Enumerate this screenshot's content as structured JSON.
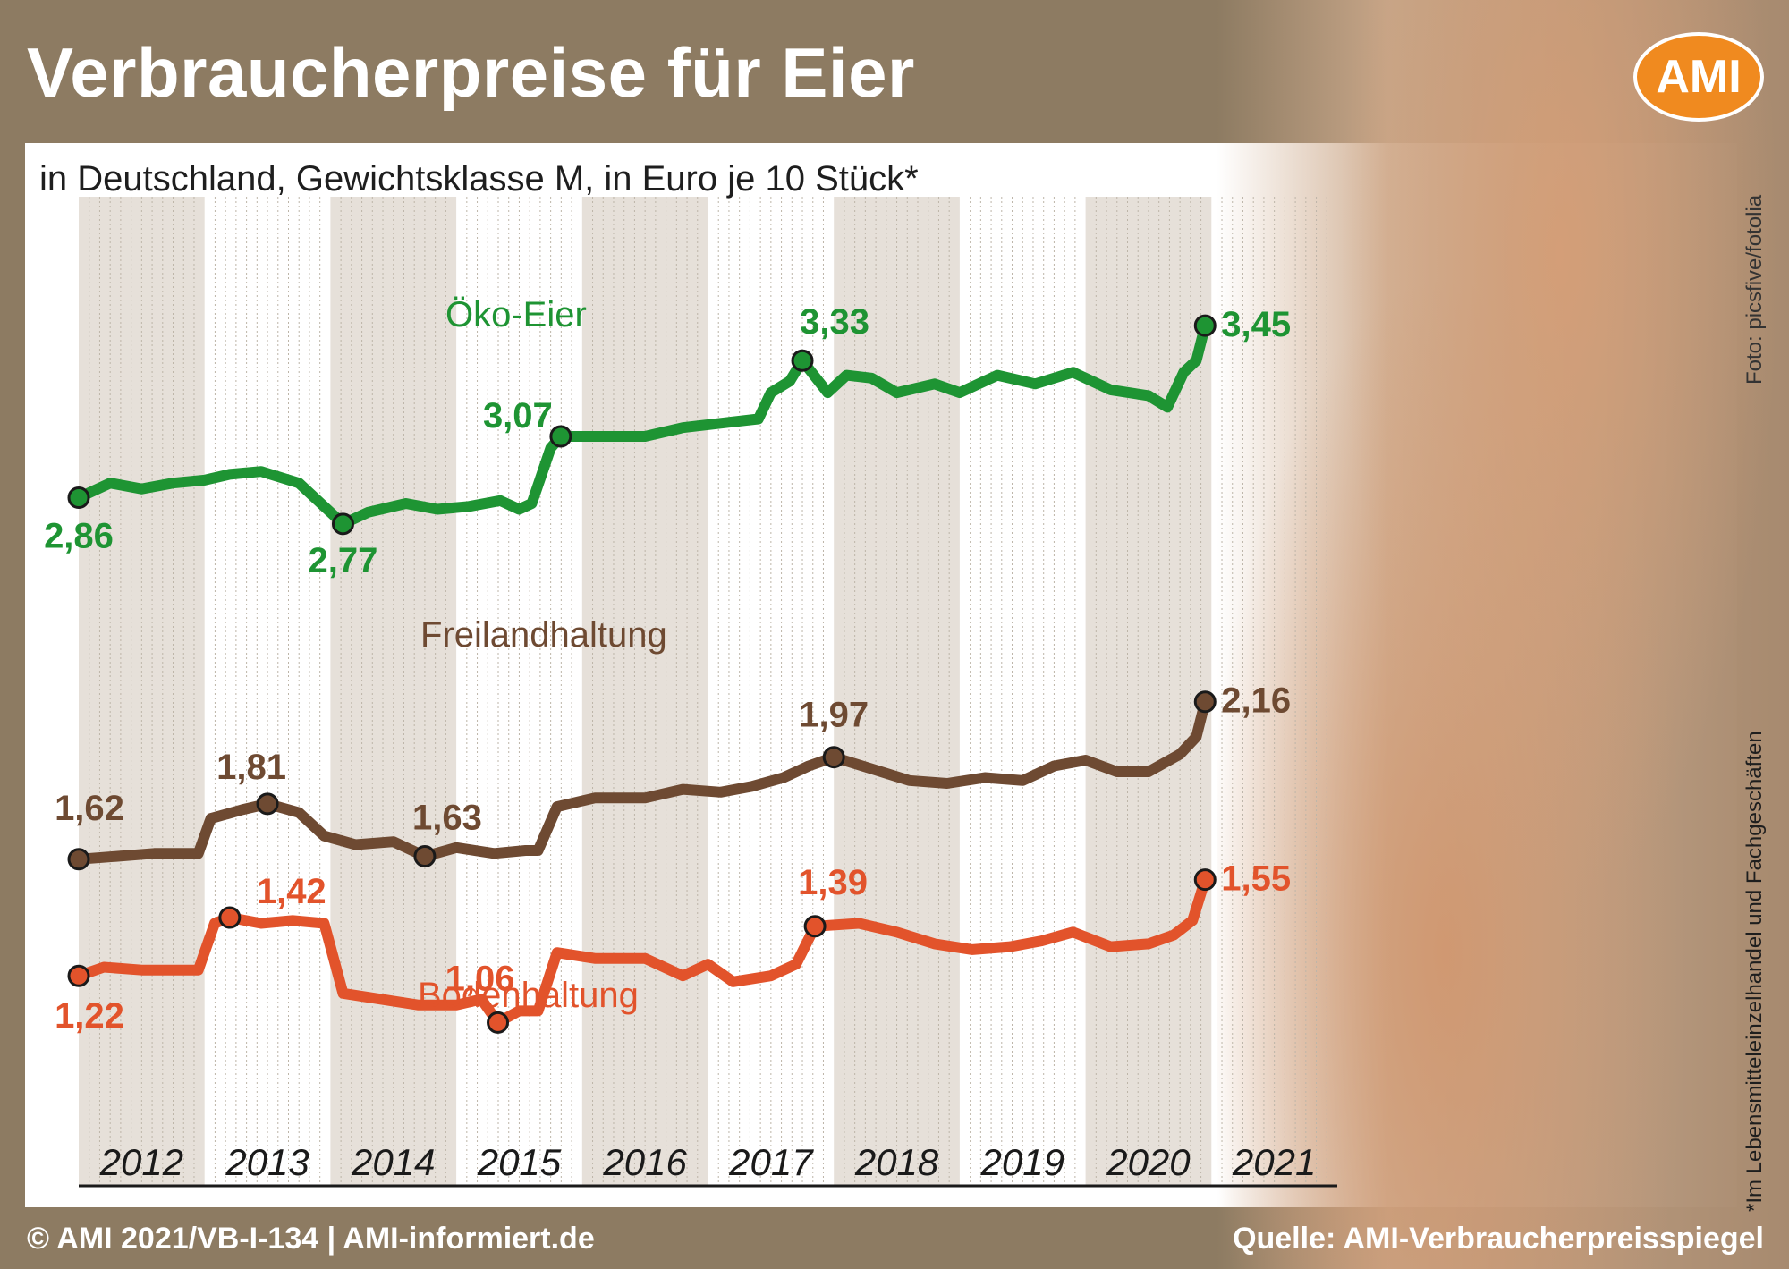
{
  "header": {
    "title": "Verbraucherpreise für Eier",
    "logo": "AMI"
  },
  "subtitle": "in Deutschland, Gewichtsklasse M, in Euro je 10 Stück*",
  "photo_credit": "Foto:  picsfive/fotolia",
  "footnote": "*Im Lebensmitteleinzelhandel und Fachgeschäften",
  "footer": {
    "left": "© AMI 2021/VB-I-134 | AMI-informiert.de",
    "right": "Quelle: AMI-Verbraucherpreisspiegel"
  },
  "colors": {
    "oeko": "#1e9433",
    "freiland": "#6e4a32",
    "boden": "#e2532b",
    "accent": "#f08a1f"
  },
  "chart_data": {
    "type": "line",
    "title": "Verbraucherpreise für Eier",
    "subtitle": "in Deutschland, Gewichtsklasse M, in Euro je 10 Stück*",
    "xlabel": "",
    "ylabel": "",
    "x_ticks": [
      "2012",
      "2013",
      "2014",
      "2015",
      "2016",
      "2017",
      "2018",
      "2019",
      "2020",
      "2021"
    ],
    "xlim": [
      2012.0,
      2022.0
    ],
    "ylim": [
      0.5,
      3.8
    ],
    "grid": "vertical",
    "series": [
      {
        "name": "Öko-Eier",
        "color": "#1e9433",
        "points": [
          [
            2012.0,
            2.86
          ],
          [
            2012.25,
            2.91
          ],
          [
            2012.5,
            2.89
          ],
          [
            2012.75,
            2.91
          ],
          [
            2013.0,
            2.92
          ],
          [
            2013.2,
            2.94
          ],
          [
            2013.45,
            2.95
          ],
          [
            2013.6,
            2.93
          ],
          [
            2013.75,
            2.91
          ],
          [
            2013.95,
            2.83
          ],
          [
            2014.1,
            2.77
          ],
          [
            2014.3,
            2.81
          ],
          [
            2014.6,
            2.84
          ],
          [
            2014.85,
            2.82
          ],
          [
            2015.1,
            2.83
          ],
          [
            2015.35,
            2.85
          ],
          [
            2015.5,
            2.82
          ],
          [
            2015.6,
            2.84
          ],
          [
            2015.75,
            3.03
          ],
          [
            2015.83,
            3.07
          ],
          [
            2016.2,
            3.07
          ],
          [
            2016.5,
            3.07
          ],
          [
            2016.8,
            3.1
          ],
          [
            2017.2,
            3.12
          ],
          [
            2017.4,
            3.13
          ],
          [
            2017.5,
            3.22
          ],
          [
            2017.65,
            3.26
          ],
          [
            2017.75,
            3.33
          ],
          [
            2017.95,
            3.22
          ],
          [
            2018.1,
            3.28
          ],
          [
            2018.3,
            3.27
          ],
          [
            2018.5,
            3.22
          ],
          [
            2018.8,
            3.25
          ],
          [
            2019.0,
            3.22
          ],
          [
            2019.3,
            3.28
          ],
          [
            2019.6,
            3.25
          ],
          [
            2019.9,
            3.29
          ],
          [
            2020.2,
            3.23
          ],
          [
            2020.5,
            3.21
          ],
          [
            2020.65,
            3.17
          ],
          [
            2020.78,
            3.29
          ],
          [
            2020.88,
            3.33
          ],
          [
            2020.95,
            3.45
          ]
        ],
        "labeled_points": [
          {
            "x": 2012.0,
            "y": 2.86,
            "label": "2,86"
          },
          {
            "x": 2014.1,
            "y": 2.77,
            "label": "2,77"
          },
          {
            "x": 2015.83,
            "y": 3.07,
            "label": "3,07"
          },
          {
            "x": 2017.75,
            "y": 3.33,
            "label": "3,33"
          },
          {
            "x": 2020.95,
            "y": 3.45,
            "label": "3,45"
          }
        ]
      },
      {
        "name": "Freilandhaltung",
        "color": "#6e4a32",
        "points": [
          [
            2012.0,
            1.62
          ],
          [
            2012.3,
            1.63
          ],
          [
            2012.6,
            1.64
          ],
          [
            2012.95,
            1.64
          ],
          [
            2013.05,
            1.76
          ],
          [
            2013.3,
            1.79
          ],
          [
            2013.5,
            1.81
          ],
          [
            2013.75,
            1.78
          ],
          [
            2013.95,
            1.7
          ],
          [
            2014.2,
            1.67
          ],
          [
            2014.5,
            1.68
          ],
          [
            2014.75,
            1.63
          ],
          [
            2015.0,
            1.66
          ],
          [
            2015.3,
            1.64
          ],
          [
            2015.55,
            1.65
          ],
          [
            2015.65,
            1.65
          ],
          [
            2015.8,
            1.8
          ],
          [
            2016.1,
            1.83
          ],
          [
            2016.5,
            1.83
          ],
          [
            2016.8,
            1.86
          ],
          [
            2017.1,
            1.85
          ],
          [
            2017.35,
            1.87
          ],
          [
            2017.6,
            1.9
          ],
          [
            2017.8,
            1.94
          ],
          [
            2018.0,
            1.97
          ],
          [
            2018.3,
            1.93
          ],
          [
            2018.6,
            1.89
          ],
          [
            2018.9,
            1.88
          ],
          [
            2019.2,
            1.9
          ],
          [
            2019.5,
            1.89
          ],
          [
            2019.75,
            1.94
          ],
          [
            2020.0,
            1.96
          ],
          [
            2020.25,
            1.92
          ],
          [
            2020.5,
            1.92
          ],
          [
            2020.75,
            1.98
          ],
          [
            2020.88,
            2.04
          ],
          [
            2020.95,
            2.16
          ]
        ],
        "labeled_points": [
          {
            "x": 2012.0,
            "y": 1.62,
            "label": "1,62"
          },
          {
            "x": 2013.5,
            "y": 1.81,
            "label": "1,81"
          },
          {
            "x": 2014.75,
            "y": 1.63,
            "label": "1,63"
          },
          {
            "x": 2018.0,
            "y": 1.97,
            "label": "1,97"
          },
          {
            "x": 2020.95,
            "y": 2.16,
            "label": "2,16"
          }
        ]
      },
      {
        "name": "Bodenhaltung",
        "color": "#e2532b",
        "points": [
          [
            2012.0,
            1.22
          ],
          [
            2012.2,
            1.25
          ],
          [
            2012.5,
            1.24
          ],
          [
            2012.95,
            1.24
          ],
          [
            2013.08,
            1.4
          ],
          [
            2013.2,
            1.42
          ],
          [
            2013.45,
            1.4
          ],
          [
            2013.7,
            1.41
          ],
          [
            2013.95,
            1.4
          ],
          [
            2014.1,
            1.16
          ],
          [
            2014.4,
            1.14
          ],
          [
            2014.7,
            1.12
          ],
          [
            2015.0,
            1.12
          ],
          [
            2015.2,
            1.14
          ],
          [
            2015.33,
            1.06
          ],
          [
            2015.5,
            1.1
          ],
          [
            2015.65,
            1.1
          ],
          [
            2015.8,
            1.3
          ],
          [
            2016.1,
            1.28
          ],
          [
            2016.5,
            1.28
          ],
          [
            2016.8,
            1.22
          ],
          [
            2017.0,
            1.26
          ],
          [
            2017.2,
            1.2
          ],
          [
            2017.5,
            1.22
          ],
          [
            2017.7,
            1.26
          ],
          [
            2017.85,
            1.39
          ],
          [
            2018.2,
            1.4
          ],
          [
            2018.5,
            1.37
          ],
          [
            2018.8,
            1.33
          ],
          [
            2019.1,
            1.31
          ],
          [
            2019.4,
            1.32
          ],
          [
            2019.65,
            1.34
          ],
          [
            2019.9,
            1.37
          ],
          [
            2020.2,
            1.32
          ],
          [
            2020.5,
            1.33
          ],
          [
            2020.7,
            1.36
          ],
          [
            2020.85,
            1.41
          ],
          [
            2020.95,
            1.55
          ]
        ],
        "labeled_points": [
          {
            "x": 2012.0,
            "y": 1.22,
            "label": "1,22"
          },
          {
            "x": 2013.2,
            "y": 1.42,
            "label": "1,42"
          },
          {
            "x": 2015.33,
            "y": 1.06,
            "label": "1,06"
          },
          {
            "x": 2017.85,
            "y": 1.39,
            "label": "1,39"
          },
          {
            "x": 2020.95,
            "y": 1.55,
            "label": "1,55"
          }
        ]
      }
    ]
  }
}
